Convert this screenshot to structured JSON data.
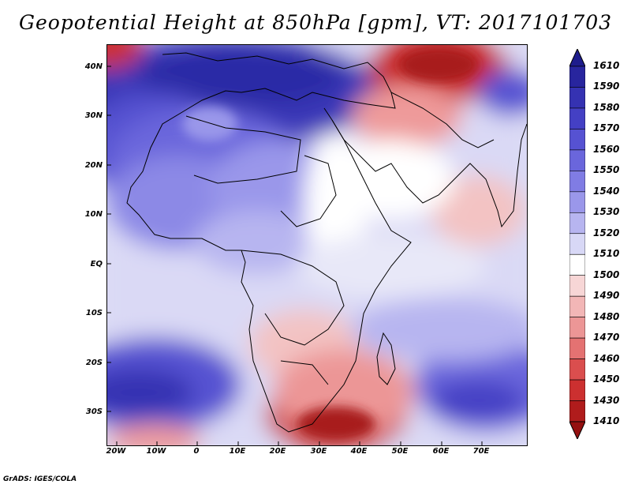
{
  "title": "Geopotential Height at 850hPa [gpm], VT: 2017101703",
  "footer": "GrADS: IGES/COLA",
  "map": {
    "lat_labels": [
      "40N",
      "30N",
      "20N",
      "10N",
      "EQ",
      "10S",
      "20S",
      "30S"
    ],
    "lon_labels": [
      "20W",
      "10W",
      "0",
      "10E",
      "20E",
      "30E",
      "40E",
      "50E",
      "60E",
      "70E"
    ]
  },
  "legend": {
    "levels": [
      "1610",
      "1590",
      "1580",
      "1570",
      "1560",
      "1550",
      "1540",
      "1530",
      "1520",
      "1510",
      "1500",
      "1490",
      "1480",
      "1470",
      "1460",
      "1450",
      "1430",
      "1410"
    ],
    "colors": [
      "#1e1c8c",
      "#28259e",
      "#3532b2",
      "#4440c4",
      "#5652d2",
      "#6a66dc",
      "#807ce4",
      "#9a97ea",
      "#b7b5f0",
      "#d8d8f6",
      "#ffffff",
      "#f7d6d6",
      "#f2b6b6",
      "#ec9696",
      "#e47272",
      "#da4e4e",
      "#cc3030",
      "#b01c1c",
      "#941010"
    ]
  }
}
